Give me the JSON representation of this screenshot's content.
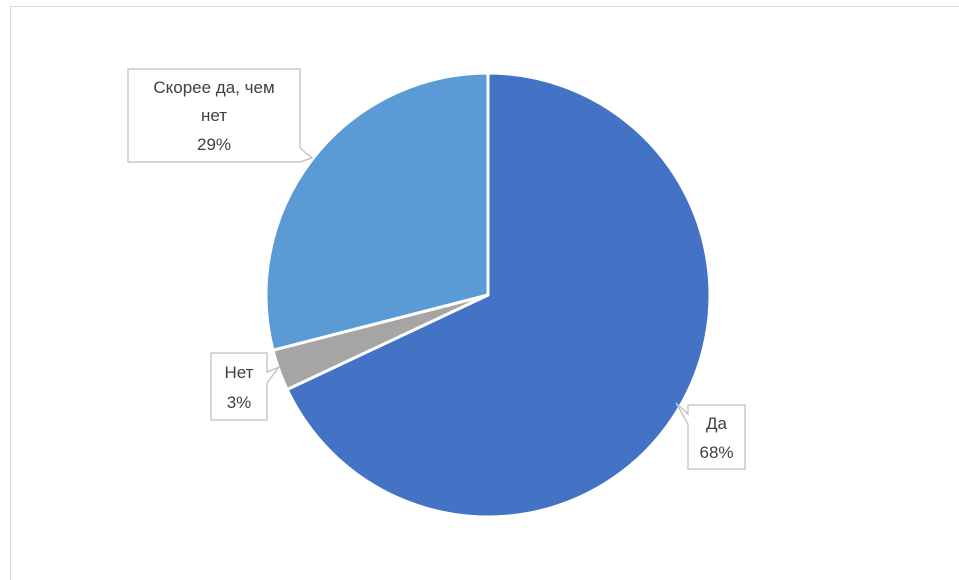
{
  "chart_data": {
    "type": "pie",
    "title": "",
    "slices": [
      {
        "label": "Да",
        "value": 68,
        "value_label": "68%",
        "color": "#4472C4"
      },
      {
        "label": "Нет",
        "value": 3,
        "value_label": "3%",
        "color": "#A5A5A5"
      },
      {
        "label": "Скорее да, чем нет",
        "value": 29,
        "value_label": "29%",
        "color": "#5B9BD5"
      }
    ],
    "start_angle_deg": 0,
    "direction": "clockwise",
    "legend": "none",
    "data_labels": "callouts"
  }
}
